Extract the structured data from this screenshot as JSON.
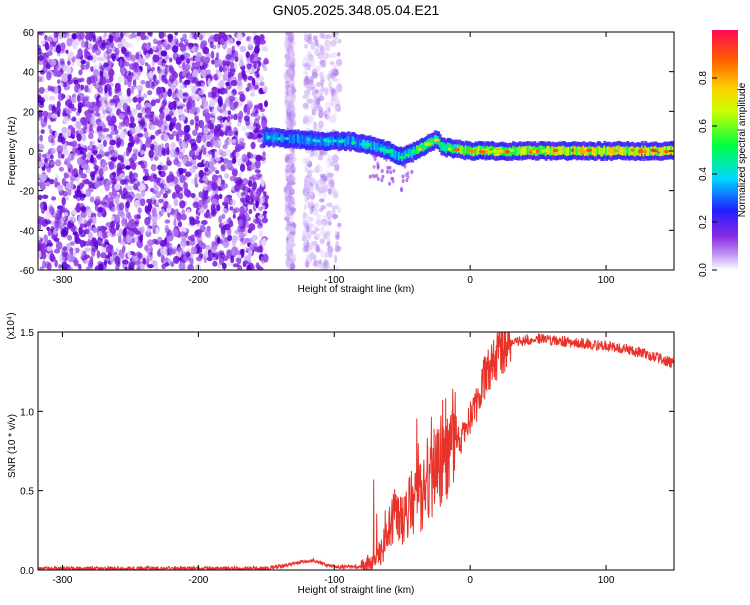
{
  "title": "GN05.2025.348.05.04.E21",
  "chart_data": [
    {
      "type": "heatmap",
      "name": "spectrogram",
      "xlabel": "Height of straight line (km)",
      "ylabel": "Frequency (Hz)",
      "xlim": [
        -318,
        150
      ],
      "ylim": [
        -60,
        60
      ],
      "xticks": [
        -300,
        -200,
        -100,
        0,
        100
      ],
      "xtick_labels": [
        "-300",
        "-200",
        "-100",
        "0",
        "100"
      ],
      "yticks": [
        -60,
        -40,
        -20,
        0,
        20,
        40,
        60
      ],
      "ytick_labels": [
        "-60",
        "-40",
        "-20",
        "0",
        "20",
        "40",
        "60"
      ],
      "noise_region_km": [
        -318,
        -150
      ],
      "noise_bands_km": [
        [
          -135,
          -130
        ],
        [
          -122,
          -96
        ]
      ],
      "signal_ridge": {
        "x": [
          -150,
          -130,
          -110,
          -90,
          -80,
          -70,
          -60,
          -50,
          -40,
          -30,
          -25,
          -20,
          -10,
          0,
          50,
          100,
          150
        ],
        "y": [
          7,
          6,
          5,
          5,
          4,
          2,
          0,
          -3,
          0,
          4,
          6,
          2,
          1,
          0,
          0,
          0,
          0
        ]
      },
      "colorbar": {
        "label": "Normalized spectral amplitude",
        "range": [
          0.0,
          1.0
        ],
        "ticks": [
          0.0,
          0.2,
          0.4,
          0.6,
          0.8
        ],
        "tick_labels": [
          "0.0",
          "0.2",
          "0.4",
          "0.6",
          "0.8"
        ]
      }
    },
    {
      "type": "line",
      "name": "snr",
      "xlabel": "Height of straight line (km)",
      "ylabel": "SNR (10 * v/v)",
      "scale_label": "(x10⁴)",
      "xlim": [
        -318,
        150
      ],
      "ylim": [
        0,
        1.5
      ],
      "xticks": [
        -300,
        -200,
        -100,
        0,
        100
      ],
      "xtick_labels": [
        "-300",
        "-200",
        "-100",
        "0",
        "100"
      ],
      "yticks": [
        0,
        0.5,
        1.0,
        1.5
      ],
      "ytick_labels": [
        "0.0",
        "0.5",
        "1.0",
        "1.5"
      ],
      "color": "#e8332b",
      "series": [
        {
          "name": "SNR",
          "x": [
            -318,
            -250,
            -200,
            -150,
            -135,
            -125,
            -115,
            -105,
            -95,
            -80,
            -70,
            -65,
            -60,
            -55,
            -50,
            -45,
            -40,
            -35,
            -30,
            -25,
            -20,
            -15,
            -10,
            -5,
            0,
            5,
            10,
            20,
            30,
            40,
            50,
            60,
            70,
            80,
            90,
            100,
            110,
            120,
            130,
            140,
            150
          ],
          "y": [
            0.01,
            0.01,
            0.01,
            0.01,
            0.03,
            0.05,
            0.06,
            0.03,
            0.02,
            0.02,
            0.05,
            0.12,
            0.25,
            0.35,
            0.3,
            0.4,
            0.45,
            0.45,
            0.55,
            0.65,
            0.75,
            0.8,
            0.8,
            0.85,
            0.95,
            1.05,
            1.2,
            1.35,
            1.42,
            1.45,
            1.46,
            1.45,
            1.44,
            1.43,
            1.42,
            1.41,
            1.4,
            1.38,
            1.36,
            1.33,
            1.3
          ]
        }
      ]
    }
  ]
}
